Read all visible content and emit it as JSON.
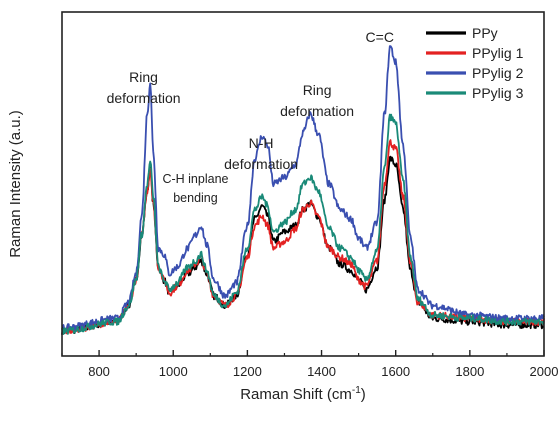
{
  "chart_data": {
    "type": "line",
    "xlabel": "Raman Shift (cm",
    "xlabel_sup": "-1",
    "xlabel_suffix": ")",
    "ylabel": "Raman Intensity (a.u.)",
    "xlim": [
      700,
      2000
    ],
    "ylim": [
      0,
      1
    ],
    "x_ticks": [
      800,
      1000,
      1200,
      1400,
      1600,
      1800,
      2000
    ],
    "x_tick_labels": [
      "800",
      "1000",
      "1200",
      "1400",
      "1600",
      "1800",
      "2000"
    ],
    "y_ticks_shown": false,
    "grid": false,
    "legend_position": "top-right",
    "x": [
      700,
      850,
      880,
      900,
      915,
      930,
      938,
      946,
      960,
      975,
      990,
      1010,
      1040,
      1060,
      1075,
      1090,
      1110,
      1140,
      1170,
      1200,
      1220,
      1240,
      1255,
      1270,
      1300,
      1330,
      1350,
      1370,
      1390,
      1420,
      1450,
      1480,
      1500,
      1520,
      1550,
      1570,
      1585,
      1600,
      1620,
      1640,
      1660,
      1700,
      1800,
      1900,
      2000
    ],
    "series": [
      {
        "name": "PPy",
        "color": "#000000",
        "values": [
          0.04,
          0.07,
          0.12,
          0.2,
          0.34,
          0.48,
          0.55,
          0.44,
          0.24,
          0.2,
          0.16,
          0.18,
          0.22,
          0.24,
          0.26,
          0.22,
          0.15,
          0.12,
          0.15,
          0.28,
          0.39,
          0.43,
          0.4,
          0.32,
          0.35,
          0.37,
          0.42,
          0.44,
          0.4,
          0.3,
          0.25,
          0.23,
          0.2,
          0.17,
          0.24,
          0.45,
          0.58,
          0.56,
          0.42,
          0.23,
          0.13,
          0.08,
          0.07,
          0.06,
          0.06
        ]
      },
      {
        "name": "PPylig 1",
        "color": "#e32222",
        "values": [
          0.04,
          0.07,
          0.12,
          0.2,
          0.34,
          0.48,
          0.55,
          0.44,
          0.24,
          0.2,
          0.16,
          0.18,
          0.23,
          0.25,
          0.27,
          0.22,
          0.15,
          0.12,
          0.15,
          0.27,
          0.37,
          0.4,
          0.37,
          0.3,
          0.32,
          0.36,
          0.42,
          0.44,
          0.4,
          0.3,
          0.27,
          0.25,
          0.2,
          0.18,
          0.26,
          0.5,
          0.63,
          0.61,
          0.46,
          0.25,
          0.13,
          0.09,
          0.08,
          0.07,
          0.07
        ]
      },
      {
        "name": "PPylig 2",
        "color": "#3a4fb0",
        "values": [
          0.05,
          0.08,
          0.13,
          0.22,
          0.4,
          0.72,
          0.82,
          0.6,
          0.3,
          0.28,
          0.22,
          0.24,
          0.3,
          0.34,
          0.37,
          0.31,
          0.2,
          0.15,
          0.19,
          0.37,
          0.58,
          0.65,
          0.62,
          0.5,
          0.52,
          0.56,
          0.66,
          0.72,
          0.66,
          0.5,
          0.42,
          0.39,
          0.33,
          0.3,
          0.38,
          0.72,
          0.93,
          0.88,
          0.62,
          0.33,
          0.17,
          0.12,
          0.09,
          0.08,
          0.08
        ]
      },
      {
        "name": "PPylig 3",
        "color": "#1a8a78",
        "values": [
          0.04,
          0.07,
          0.12,
          0.2,
          0.34,
          0.5,
          0.57,
          0.46,
          0.24,
          0.2,
          0.17,
          0.19,
          0.24,
          0.26,
          0.28,
          0.23,
          0.15,
          0.12,
          0.16,
          0.3,
          0.42,
          0.46,
          0.43,
          0.35,
          0.38,
          0.42,
          0.5,
          0.52,
          0.48,
          0.36,
          0.3,
          0.27,
          0.23,
          0.2,
          0.29,
          0.55,
          0.71,
          0.69,
          0.51,
          0.27,
          0.14,
          0.09,
          0.08,
          0.07,
          0.07
        ]
      }
    ],
    "annotations": [
      {
        "key": "ring1",
        "lines": [
          "Ring",
          "deformation"
        ],
        "x": 920
      },
      {
        "key": "ch",
        "lines": [
          "C-H inplane",
          "bending"
        ],
        "x": 1060
      },
      {
        "key": "nh",
        "lines": [
          "N-H",
          "deformation"
        ],
        "x": 1237
      },
      {
        "key": "ring2",
        "lines": [
          "Ring",
          "deformation"
        ],
        "x": 1388
      },
      {
        "key": "cc",
        "lines": [
          "C=C"
        ],
        "x": 1557
      }
    ]
  }
}
